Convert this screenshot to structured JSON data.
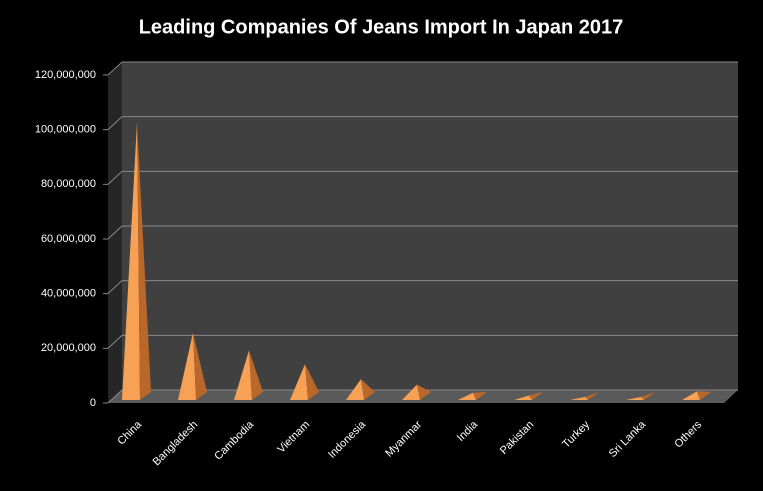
{
  "chart_data": {
    "type": "bar",
    "title": "Leading Companies Of Jeans Import In Japan 2017",
    "categories": [
      "China",
      "Bangladesh",
      "Cambodia",
      "Vietnam",
      "Indonesia",
      "Myanmar",
      "India",
      "Pakistan",
      "Turkey",
      "Sri Lanka",
      "Others"
    ],
    "values": [
      102000000,
      25000000,
      18500000,
      13500000,
      8000000,
      6000000,
      3000000,
      2000000,
      1500000,
      1500000,
      3500000
    ],
    "color": "#f7a155",
    "ylim": [
      0,
      120000000
    ],
    "yticks": [
      0,
      {
        "value": 20000000,
        "label": "20,000,000"
      },
      {
        "value": 40000000,
        "label": "40,000,000"
      },
      {
        "value": 60000000,
        "label": "60,000,000"
      },
      {
        "value": 80000000,
        "label": "80,000,000"
      },
      {
        "value": 100000000,
        "label": "100,000,000"
      },
      {
        "value": 120000000,
        "label": "120,000,000"
      }
    ],
    "grid": true
  }
}
